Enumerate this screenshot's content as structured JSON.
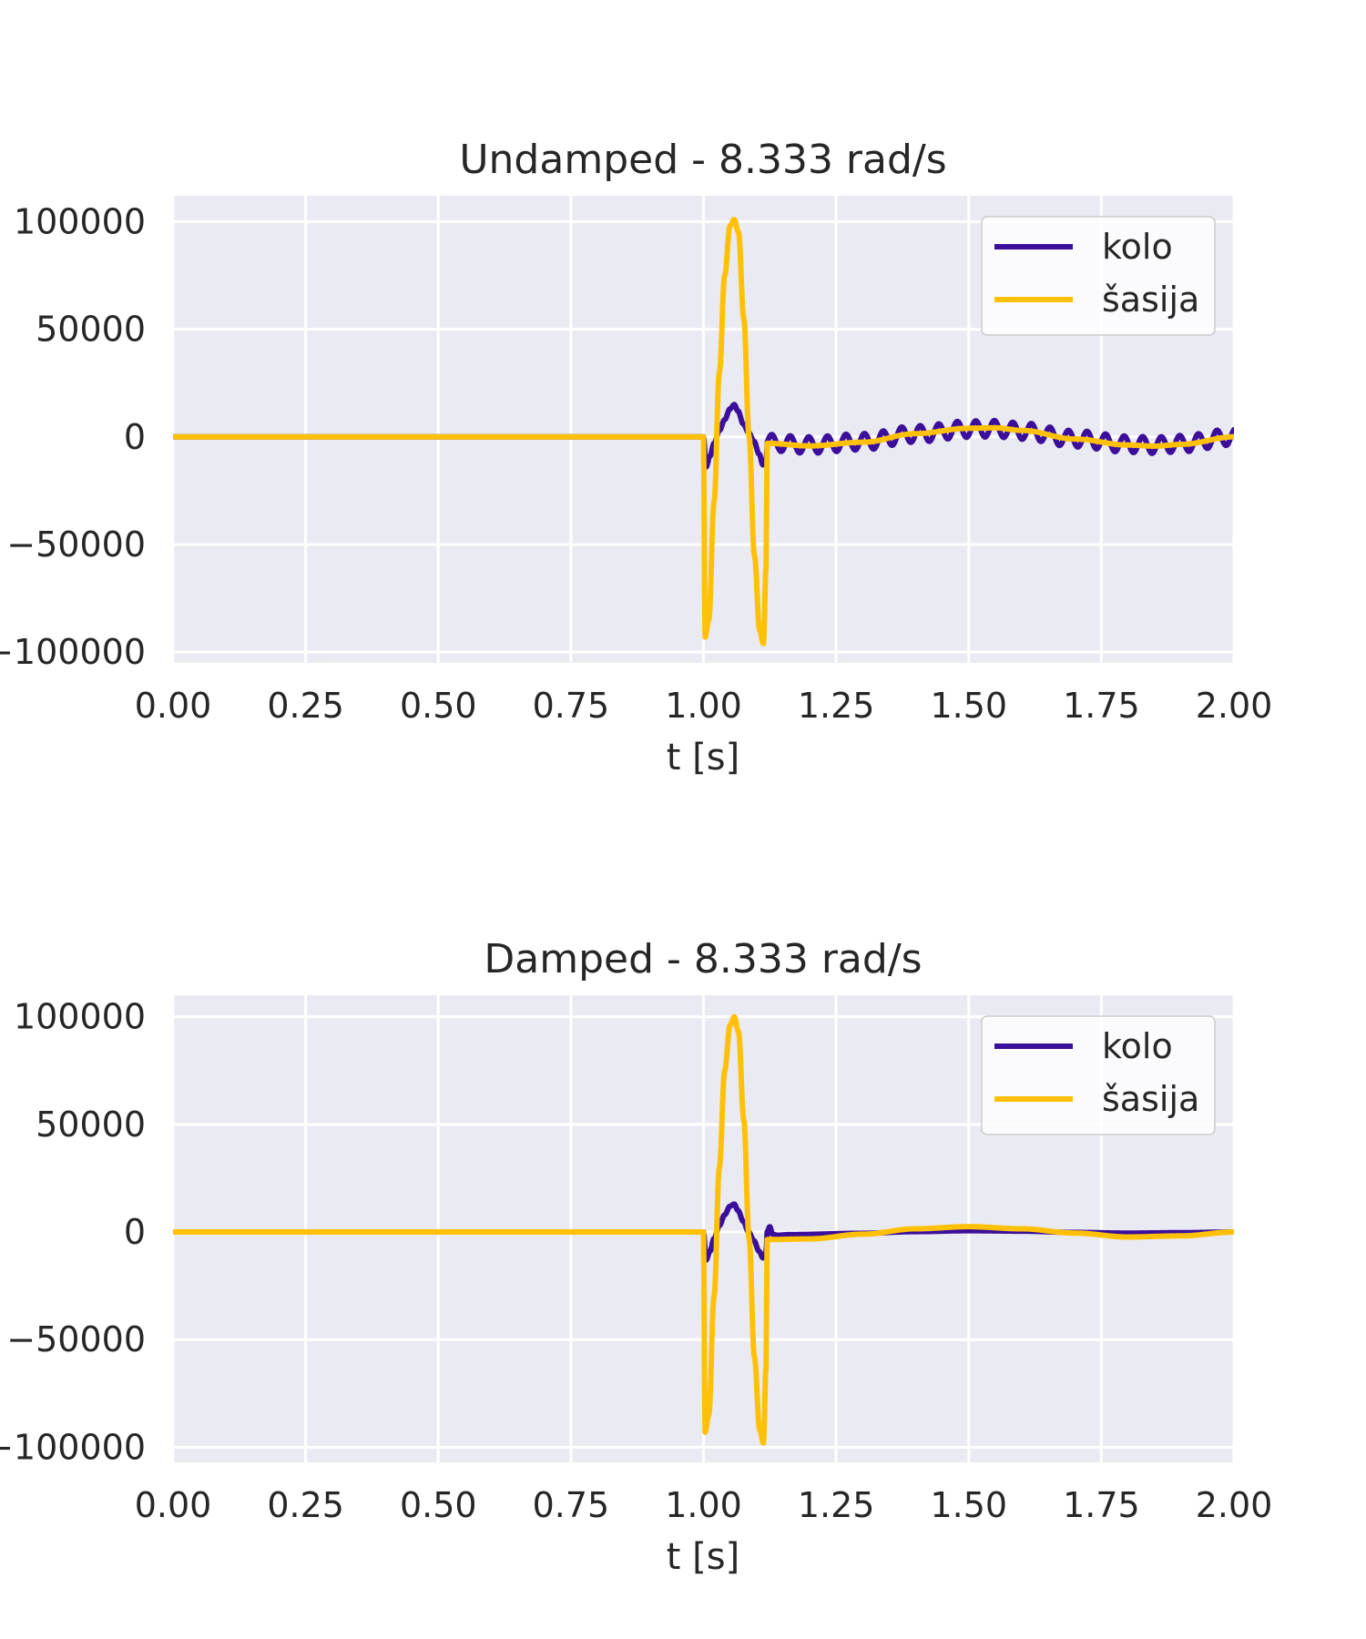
{
  "colors": {
    "background": "#ffffff",
    "plot_bg": "#eaeaf2",
    "grid": "#ffffff",
    "kolo": "#3b0f9a",
    "sasija": "#ffc107",
    "text": "#262626"
  },
  "chart_data": [
    {
      "type": "line",
      "title": "Undamped - 8.333 rad/s",
      "xlabel": "t [s]",
      "ylabel": "",
      "xlim": [
        0.0,
        2.0
      ],
      "ylim": [
        -105000,
        112000
      ],
      "xticks": [
        0.0,
        0.25,
        0.5,
        0.75,
        1.0,
        1.25,
        1.5,
        1.75,
        2.0
      ],
      "xtick_labels": [
        "0.00",
        "0.25",
        "0.50",
        "0.75",
        "1.00",
        "1.25",
        "1.50",
        "1.75",
        "2.00"
      ],
      "yticks": [
        100000,
        50000,
        0,
        -50000,
        -100000
      ],
      "ytick_labels": [
        "100000",
        "50000",
        "0",
        "−50000",
        "−100000"
      ],
      "grid": true,
      "legend_position": "top-right",
      "series": [
        {
          "name": "kolo",
          "color": "#3b0f9a",
          "segments": [
            {
              "kind": "flat",
              "x": [
                0.0,
                1.0
              ],
              "y": 0
            },
            {
              "kind": "points",
              "x": [
                1.0,
                1.005,
                1.012,
                1.02,
                1.03,
                1.04,
                1.05,
                1.058,
                1.065,
                1.075,
                1.085,
                1.095,
                1.105,
                1.112,
                1.118,
                1.12
              ],
              "y": [
                0,
                -14000,
                -9000,
                -3000,
                3000,
                8000,
                13000,
                15000,
                12000,
                6000,
                2000,
                -2000,
                -8000,
                -13000,
                -12000,
                -4000
              ]
            },
            {
              "kind": "oscillation",
              "x": [
                1.12,
                2.0
              ],
              "frequency_hz": 28.6,
              "amplitude": 3800,
              "base": "sasija",
              "base_scale": 0.9
            }
          ]
        },
        {
          "name": "šasija",
          "color": "#ffc107",
          "segments": [
            {
              "kind": "flat",
              "x": [
                0.0,
                1.0
              ],
              "y": 0
            },
            {
              "kind": "points",
              "x": [
                1.0,
                1.003,
                1.01,
                1.02,
                1.03,
                1.04,
                1.05,
                1.058,
                1.066,
                1.076,
                1.086,
                1.096,
                1.106,
                1.113,
                1.118,
                1.12
              ],
              "y": [
                0,
                -93000,
                -85000,
                -30000,
                30000,
                75000,
                98000,
                101000,
                95000,
                55000,
                0,
                -55000,
                -90000,
                -96000,
                -60000,
                -3000
              ]
            },
            {
              "kind": "sine",
              "x": [
                1.12,
                2.0
              ],
              "values": {
                "x": [
                  1.12,
                  1.2,
                  1.3,
                  1.4,
                  1.5,
                  1.55,
                  1.6,
                  1.7,
                  1.8,
                  1.85,
                  1.9,
                  2.0
                ],
                "y": [
                  -3000,
                  -4200,
                  -2500,
                  1500,
                  4000,
                  4200,
                  3000,
                  -1000,
                  -3800,
                  -4300,
                  -3500,
                  0
                ]
              }
            }
          ]
        }
      ]
    },
    {
      "type": "line",
      "title": "Damped - 8.333 rad/s",
      "xlabel": "t [s]",
      "ylabel": "",
      "xlim": [
        0.0,
        2.0
      ],
      "ylim": [
        -107000,
        110000
      ],
      "xticks": [
        0.0,
        0.25,
        0.5,
        0.75,
        1.0,
        1.25,
        1.5,
        1.75,
        2.0
      ],
      "xtick_labels": [
        "0.00",
        "0.25",
        "0.50",
        "0.75",
        "1.00",
        "1.25",
        "1.50",
        "1.75",
        "2.00"
      ],
      "yticks": [
        100000,
        50000,
        0,
        -50000,
        -100000
      ],
      "ytick_labels": [
        "100000",
        "50000",
        "0",
        "−50000",
        "−100000"
      ],
      "grid": true,
      "legend_position": "top-right",
      "series": [
        {
          "name": "kolo",
          "color": "#3b0f9a",
          "segments": [
            {
              "kind": "flat",
              "x": [
                0.0,
                1.0
              ],
              "y": 0
            },
            {
              "kind": "points",
              "x": [
                1.0,
                1.005,
                1.012,
                1.02,
                1.03,
                1.04,
                1.05,
                1.058,
                1.065,
                1.075,
                1.085,
                1.095,
                1.105,
                1.112,
                1.118,
                1.12,
                1.125,
                1.13,
                1.14,
                1.16
              ],
              "y": [
                0,
                -13000,
                -9000,
                -3000,
                3000,
                8000,
                12000,
                13000,
                10000,
                5000,
                0,
                -4000,
                -9000,
                -12000,
                -10000,
                0,
                2500,
                -1000,
                -1500,
                -1200
              ]
            },
            {
              "kind": "sine",
              "x": [
                1.16,
                2.0
              ],
              "values": {
                "x": [
                  1.16,
                  1.3,
                  1.4,
                  1.5,
                  1.6,
                  1.7,
                  1.8,
                  1.9,
                  2.0
                ],
                "y": [
                  -1200,
                  -600,
                  200,
                  600,
                  400,
                  -200,
                  -500,
                  -300,
                  0
                ]
              }
            }
          ]
        },
        {
          "name": "šasija",
          "color": "#ffc107",
          "segments": [
            {
              "kind": "flat",
              "x": [
                0.0,
                1.0
              ],
              "y": 0
            },
            {
              "kind": "points",
              "x": [
                1.0,
                1.003,
                1.01,
                1.02,
                1.03,
                1.04,
                1.05,
                1.058,
                1.066,
                1.076,
                1.086,
                1.096,
                1.106,
                1.113,
                1.118,
                1.12
              ],
              "y": [
                0,
                -93000,
                -85000,
                -30000,
                30000,
                75000,
                96000,
                100000,
                93000,
                52000,
                -3000,
                -58000,
                -92000,
                -98000,
                -62000,
                -3500
              ]
            },
            {
              "kind": "sine",
              "x": [
                1.12,
                2.0
              ],
              "values": {
                "x": [
                  1.12,
                  1.2,
                  1.3,
                  1.4,
                  1.5,
                  1.6,
                  1.7,
                  1.8,
                  1.9,
                  2.0
                ],
                "y": [
                  -3500,
                  -3200,
                  -1000,
                  1500,
                  2500,
                  1500,
                  -500,
                  -2300,
                  -1800,
                  0
                ]
              }
            }
          ]
        }
      ]
    }
  ]
}
